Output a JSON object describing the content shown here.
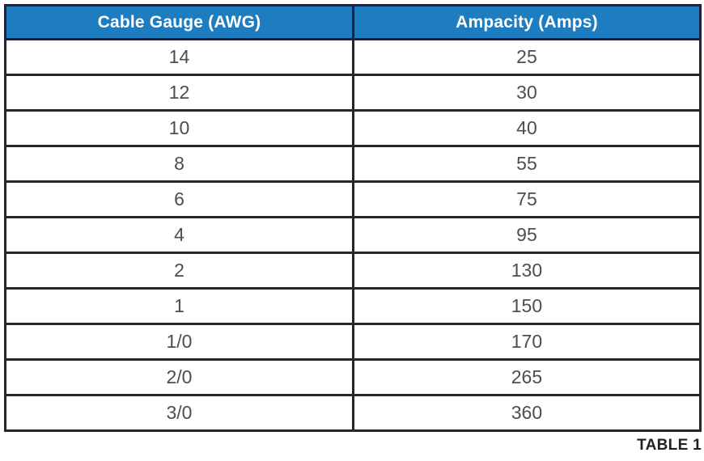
{
  "table": {
    "headers": {
      "gauge": "Cable Gauge (AWG)",
      "ampacity": "Ampacity (Amps)"
    },
    "header_bg_color": "#1e7dc1",
    "header_text_color": "#ffffff",
    "border_color": "#26262e",
    "rows": [
      {
        "gauge": "14",
        "ampacity": "25"
      },
      {
        "gauge": "12",
        "ampacity": "30"
      },
      {
        "gauge": "10",
        "ampacity": "40"
      },
      {
        "gauge": "8",
        "ampacity": "55"
      },
      {
        "gauge": "6",
        "ampacity": "75"
      },
      {
        "gauge": "4",
        "ampacity": "95"
      },
      {
        "gauge": "2",
        "ampacity": "130"
      },
      {
        "gauge": "1",
        "ampacity": "150"
      },
      {
        "gauge": "1/0",
        "ampacity": "170"
      },
      {
        "gauge": "2/0",
        "ampacity": "265"
      },
      {
        "gauge": "3/0",
        "ampacity": "360"
      }
    ],
    "caption": "TABLE 1"
  },
  "chart_data": {
    "type": "table",
    "title": "TABLE 1",
    "columns": [
      "Cable Gauge (AWG)",
      "Ampacity (Amps)"
    ],
    "categories": [
      "14",
      "12",
      "10",
      "8",
      "6",
      "4",
      "2",
      "1",
      "1/0",
      "2/0",
      "3/0"
    ],
    "values": [
      25,
      30,
      40,
      55,
      75,
      95,
      130,
      150,
      170,
      265,
      360
    ]
  }
}
